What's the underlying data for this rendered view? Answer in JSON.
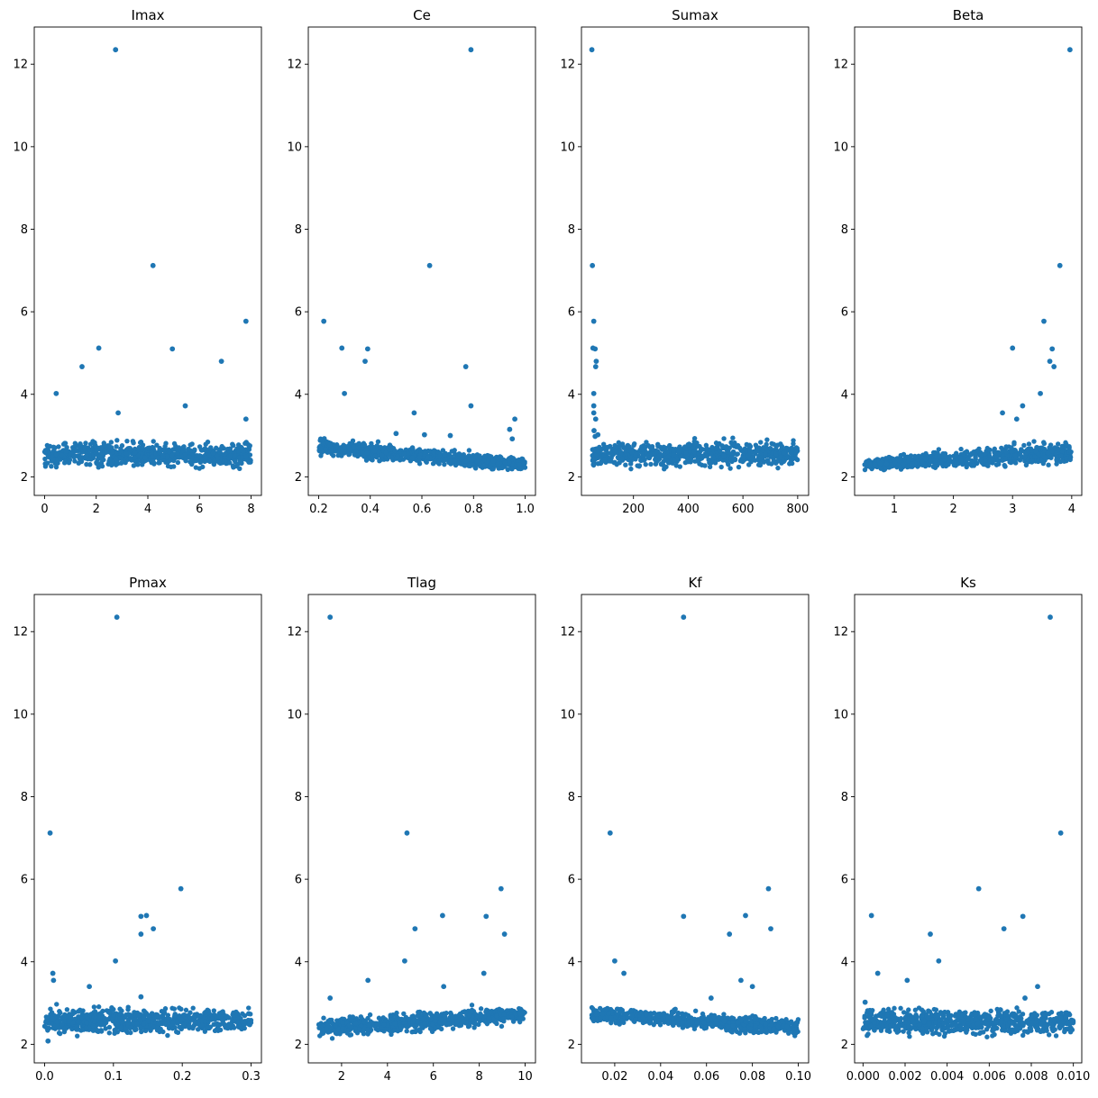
{
  "figure": {
    "marker_color": "#1f77b4",
    "background": "#ffffff"
  },
  "chart_data": [
    {
      "type": "scatter",
      "title": "Imax",
      "xlabel": "",
      "ylabel": "",
      "xlim": [
        -0.4,
        8.4
      ],
      "ylim": [
        1.55,
        12.9
      ],
      "xticks": [
        0,
        2,
        4,
        6,
        8
      ],
      "xticklabels": [
        "0",
        "2",
        "4",
        "6",
        "8"
      ],
      "yticks": [
        2,
        4,
        6,
        8,
        10,
        12
      ],
      "yticklabels": [
        "2",
        "4",
        "6",
        "8",
        "10",
        "12"
      ],
      "grid": false,
      "outliers": [
        [
          2.75,
          12.35
        ],
        [
          4.2,
          7.12
        ],
        [
          7.8,
          5.77
        ],
        [
          2.1,
          5.12
        ],
        [
          4.95,
          5.1
        ],
        [
          6.85,
          4.8
        ],
        [
          1.45,
          4.67
        ],
        [
          0.45,
          4.02
        ],
        [
          5.45,
          3.72
        ],
        [
          2.85,
          3.55
        ],
        [
          7.8,
          3.4
        ]
      ],
      "cluster": {
        "n": 700,
        "x_range": [
          0.0,
          8.0
        ],
        "y_start": [
          2.12,
          2.95
        ],
        "y_end": [
          2.12,
          2.95
        ]
      }
    },
    {
      "type": "scatter",
      "title": "Ce",
      "xlabel": "",
      "ylabel": "",
      "xlim": [
        0.16,
        1.04
      ],
      "ylim": [
        1.55,
        12.9
      ],
      "xticks": [
        0.2,
        0.4,
        0.6,
        0.8,
        1.0
      ],
      "xticklabels": [
        "0.2",
        "0.4",
        "0.6",
        "0.8",
        "1.0"
      ],
      "yticks": [
        2,
        4,
        6,
        8,
        10,
        12
      ],
      "yticklabels": [
        "2",
        "4",
        "6",
        "8",
        "10",
        "12"
      ],
      "grid": false,
      "outliers": [
        [
          0.79,
          12.35
        ],
        [
          0.63,
          7.12
        ],
        [
          0.22,
          5.77
        ],
        [
          0.29,
          5.12
        ],
        [
          0.39,
          5.1
        ],
        [
          0.38,
          4.8
        ],
        [
          0.77,
          4.67
        ],
        [
          0.3,
          4.02
        ],
        [
          0.79,
          3.72
        ],
        [
          0.57,
          3.55
        ],
        [
          0.96,
          3.4
        ],
        [
          0.94,
          3.15
        ],
        [
          0.95,
          2.92
        ],
        [
          0.71,
          3.0
        ],
        [
          0.5,
          3.05
        ],
        [
          0.61,
          3.02
        ]
      ],
      "cluster": {
        "n": 700,
        "x_range": [
          0.2,
          1.0
        ],
        "y_start": [
          2.45,
          3.0
        ],
        "y_end": [
          2.05,
          2.55
        ]
      }
    },
    {
      "type": "scatter",
      "title": "Sumax",
      "xlabel": "",
      "ylabel": "",
      "xlim": [
        10,
        840
      ],
      "ylim": [
        1.55,
        12.9
      ],
      "xticks": [
        200,
        400,
        600,
        800
      ],
      "xticklabels": [
        "200",
        "400",
        "600",
        "800"
      ],
      "yticks": [
        2,
        4,
        6,
        8,
        10,
        12
      ],
      "yticklabels": [
        "2",
        "4",
        "6",
        "8",
        "10",
        "12"
      ],
      "grid": false,
      "outliers": [
        [
          48,
          12.35
        ],
        [
          50,
          7.12
        ],
        [
          55,
          5.77
        ],
        [
          52,
          5.12
        ],
        [
          60,
          5.1
        ],
        [
          64,
          4.8
        ],
        [
          62,
          4.67
        ],
        [
          55,
          4.02
        ],
        [
          55,
          3.72
        ],
        [
          55,
          3.55
        ],
        [
          62,
          3.4
        ],
        [
          56,
          3.12
        ],
        [
          60,
          2.98
        ],
        [
          70,
          3.02
        ]
      ],
      "cluster": {
        "n": 700,
        "x_range": [
          50,
          800
        ],
        "y_start": [
          2.12,
          2.95
        ],
        "y_end": [
          2.12,
          3.0
        ]
      }
    },
    {
      "type": "scatter",
      "title": "Beta",
      "xlabel": "",
      "ylabel": "",
      "xlim": [
        0.33,
        4.17
      ],
      "ylim": [
        1.55,
        12.9
      ],
      "xticks": [
        1,
        2,
        3,
        4
      ],
      "xticklabels": [
        "1",
        "2",
        "3",
        "4"
      ],
      "yticks": [
        2,
        4,
        6,
        8,
        10,
        12
      ],
      "yticklabels": [
        "2",
        "4",
        "6",
        "8",
        "10",
        "12"
      ],
      "grid": false,
      "outliers": [
        [
          3.97,
          12.35
        ],
        [
          3.8,
          7.12
        ],
        [
          3.53,
          5.77
        ],
        [
          3.0,
          5.12
        ],
        [
          3.67,
          5.1
        ],
        [
          3.63,
          4.8
        ],
        [
          3.7,
          4.67
        ],
        [
          3.47,
          4.02
        ],
        [
          3.17,
          3.72
        ],
        [
          2.83,
          3.55
        ],
        [
          3.07,
          3.4
        ]
      ],
      "cluster": {
        "n": 700,
        "x_range": [
          0.5,
          4.0
        ],
        "y_start": [
          2.1,
          2.5
        ],
        "y_end": [
          2.2,
          3.0
        ]
      }
    },
    {
      "type": "scatter",
      "title": "Pmax",
      "xlabel": "",
      "ylabel": "",
      "xlim": [
        -0.015,
        0.315
      ],
      "ylim": [
        1.55,
        12.9
      ],
      "xticks": [
        0.0,
        0.1,
        0.2,
        0.3
      ],
      "xticklabels": [
        "0.0",
        "0.1",
        "0.2",
        "0.3"
      ],
      "yticks": [
        2,
        4,
        6,
        8,
        10,
        12
      ],
      "yticklabels": [
        "2",
        "4",
        "6",
        "8",
        "10",
        "12"
      ],
      "grid": false,
      "outliers": [
        [
          0.105,
          12.35
        ],
        [
          0.008,
          7.12
        ],
        [
          0.198,
          5.77
        ],
        [
          0.148,
          5.12
        ],
        [
          0.14,
          5.1
        ],
        [
          0.158,
          4.8
        ],
        [
          0.14,
          4.67
        ],
        [
          0.103,
          4.02
        ],
        [
          0.012,
          3.72
        ],
        [
          0.013,
          3.55
        ],
        [
          0.065,
          3.4
        ],
        [
          0.14,
          3.15
        ],
        [
          0.005,
          2.08
        ]
      ],
      "cluster": {
        "n": 700,
        "x_range": [
          0.0,
          0.3
        ],
        "y_start": [
          2.15,
          3.0
        ],
        "y_end": [
          2.15,
          3.0
        ]
      }
    },
    {
      "type": "scatter",
      "title": "Tlag",
      "xlabel": "",
      "ylabel": "",
      "xlim": [
        0.55,
        10.45
      ],
      "ylim": [
        1.55,
        12.9
      ],
      "xticks": [
        2,
        4,
        6,
        8,
        10
      ],
      "xticklabels": [
        "2",
        "4",
        "6",
        "8",
        "10"
      ],
      "yticks": [
        2,
        4,
        6,
        8,
        10,
        12
      ],
      "yticklabels": [
        "2",
        "4",
        "6",
        "8",
        "10",
        "12"
      ],
      "grid": false,
      "outliers": [
        [
          1.5,
          12.35
        ],
        [
          4.85,
          7.12
        ],
        [
          8.95,
          5.77
        ],
        [
          6.4,
          5.12
        ],
        [
          8.3,
          5.1
        ],
        [
          5.2,
          4.8
        ],
        [
          9.1,
          4.67
        ],
        [
          4.75,
          4.02
        ],
        [
          8.2,
          3.72
        ],
        [
          3.15,
          3.55
        ],
        [
          6.45,
          3.4
        ],
        [
          1.5,
          3.12
        ]
      ],
      "cluster": {
        "n": 700,
        "x_range": [
          1.0,
          10.0
        ],
        "y_start": [
          2.05,
          2.7
        ],
        "y_end": [
          2.4,
          3.05
        ]
      }
    },
    {
      "type": "scatter",
      "title": "Kf",
      "xlabel": "",
      "ylabel": "",
      "xlim": [
        0.0055,
        0.1045
      ],
      "ylim": [
        1.55,
        12.9
      ],
      "xticks": [
        0.02,
        0.04,
        0.06,
        0.08,
        0.1
      ],
      "xticklabels": [
        "0.02",
        "0.04",
        "0.06",
        "0.08",
        "0.10"
      ],
      "yticks": [
        2,
        4,
        6,
        8,
        10,
        12
      ],
      "yticklabels": [
        "2",
        "4",
        "6",
        "8",
        "10",
        "12"
      ],
      "grid": false,
      "outliers": [
        [
          0.05,
          12.35
        ],
        [
          0.018,
          7.12
        ],
        [
          0.087,
          5.77
        ],
        [
          0.077,
          5.12
        ],
        [
          0.05,
          5.1
        ],
        [
          0.088,
          4.8
        ],
        [
          0.07,
          4.67
        ],
        [
          0.02,
          4.02
        ],
        [
          0.024,
          3.72
        ],
        [
          0.075,
          3.55
        ],
        [
          0.08,
          3.4
        ],
        [
          0.062,
          3.12
        ]
      ],
      "cluster": {
        "n": 700,
        "x_range": [
          0.01,
          0.1
        ],
        "y_start": [
          2.5,
          3.0
        ],
        "y_end": [
          2.08,
          2.7
        ]
      }
    },
    {
      "type": "scatter",
      "title": "Ks",
      "xlabel": "",
      "ylabel": "",
      "xlim": [
        -0.0004,
        0.0104
      ],
      "ylim": [
        1.55,
        12.9
      ],
      "xticks": [
        0.0,
        0.002,
        0.004,
        0.006,
        0.008,
        0.01
      ],
      "xticklabels": [
        "0.000",
        "0.002",
        "0.004",
        "0.006",
        "0.008",
        "0.010"
      ],
      "yticks": [
        2,
        4,
        6,
        8,
        10,
        12
      ],
      "yticklabels": [
        "2",
        "4",
        "6",
        "8",
        "10",
        "12"
      ],
      "grid": false,
      "outliers": [
        [
          0.0089,
          12.35
        ],
        [
          0.0094,
          7.12
        ],
        [
          0.0055,
          5.77
        ],
        [
          0.0004,
          5.12
        ],
        [
          0.0076,
          5.1
        ],
        [
          0.0067,
          4.8
        ],
        [
          0.0032,
          4.67
        ],
        [
          0.0036,
          4.02
        ],
        [
          0.0007,
          3.72
        ],
        [
          0.0021,
          3.55
        ],
        [
          0.0083,
          3.4
        ],
        [
          0.0077,
          3.12
        ],
        [
          0.0001,
          3.02
        ]
      ],
      "cluster": {
        "n": 700,
        "x_range": [
          0.0,
          0.01
        ],
        "y_start": [
          2.1,
          3.0
        ],
        "y_end": [
          2.1,
          3.0
        ]
      }
    }
  ]
}
